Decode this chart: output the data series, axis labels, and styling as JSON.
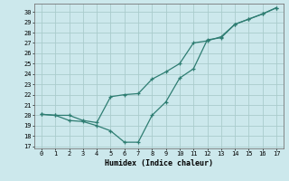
{
  "title": "",
  "xlabel": "Humidex (Indice chaleur)",
  "ylabel": "",
  "background_color": "#cce8ec",
  "line_color": "#2e7d72",
  "grid_color": "#aacccc",
  "line1_x": [
    0,
    1,
    2,
    3,
    4,
    5,
    6,
    7,
    8,
    9,
    10,
    11,
    12,
    13,
    14,
    15,
    16,
    17
  ],
  "line1_y": [
    20.1,
    20.0,
    19.5,
    19.4,
    19.0,
    18.5,
    17.4,
    17.4,
    20.0,
    21.3,
    23.6,
    24.5,
    27.3,
    27.5,
    28.8,
    29.3,
    29.8,
    30.4
  ],
  "line2_x": [
    0,
    1,
    2,
    3,
    4,
    5,
    6,
    7,
    8,
    9,
    10,
    11,
    12,
    13,
    14,
    15,
    16,
    17
  ],
  "line2_y": [
    20.1,
    20.0,
    20.0,
    19.5,
    19.3,
    21.8,
    22.0,
    22.1,
    23.5,
    24.2,
    25.0,
    27.0,
    27.2,
    27.6,
    28.8,
    29.3,
    29.8,
    30.4
  ],
  "xlim": [
    -0.5,
    17.5
  ],
  "ylim": [
    16.8,
    30.8
  ],
  "xticks": [
    0,
    1,
    2,
    3,
    4,
    5,
    6,
    7,
    8,
    9,
    10,
    11,
    12,
    13,
    14,
    15,
    16,
    17
  ],
  "yticks": [
    17,
    18,
    19,
    20,
    21,
    22,
    23,
    24,
    25,
    26,
    27,
    28,
    29,
    30
  ]
}
